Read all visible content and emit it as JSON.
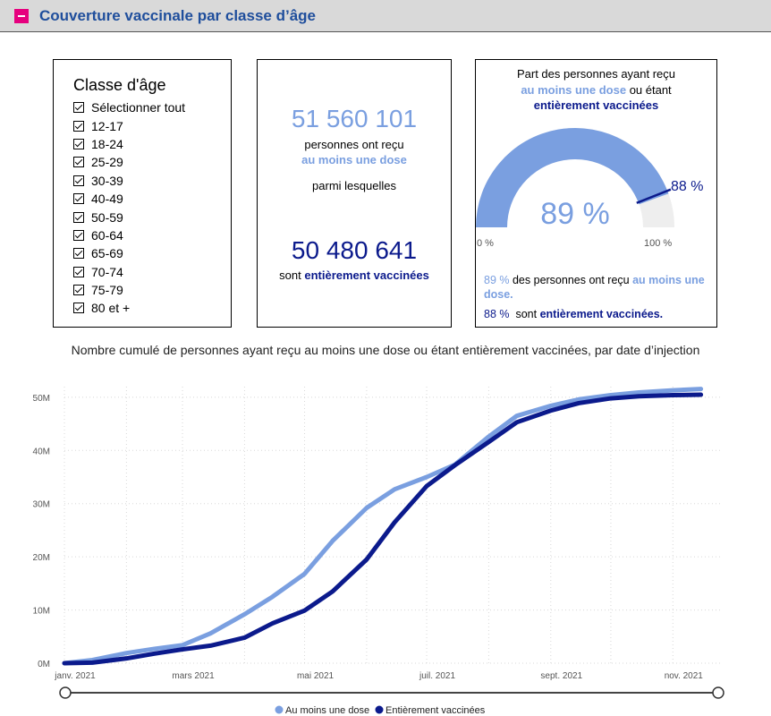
{
  "header": {
    "title": "Couverture vaccinale par classe d’âge"
  },
  "filter": {
    "title": "Classe d'âge",
    "items": [
      "Sélectionner tout",
      "12-17",
      "18-24",
      "25-29",
      "30-39",
      "40-49",
      "50-59",
      "60-64",
      "65-69",
      "70-74",
      "75-79",
      "80 et +"
    ]
  },
  "stats": {
    "one_dose_count": "51 560 101",
    "one_dose_text": "personnes ont reçu",
    "one_dose_highlight": "au moins une dose",
    "among": "parmi lesquelles",
    "full_count": "50 480 641",
    "full_text": "sont",
    "full_highlight": "entièrement vaccinées"
  },
  "gauge": {
    "caption_line1": "Part des personnes ayant reçu",
    "caption_highlight1": "au moins une dose",
    "caption_mid": "ou étant",
    "caption_highlight2": "entièrement vaccinées",
    "value_label": "89 %",
    "target_label": "88 %",
    "min_label": "0 %",
    "max_label": "100 %",
    "value": 89,
    "target": 88,
    "foot1_pct": "89 %",
    "foot1_text": "des personnes ont reçu",
    "foot1_highlight": "au moins une dose.",
    "foot2_pct": "88 %",
    "foot2_text": "sont",
    "foot2_highlight": "entièrement vaccinées."
  },
  "colors": {
    "light": "#7a9fe0",
    "dark": "#0b1a8c",
    "accent": "#e6007e",
    "header_title": "#1f4e9c"
  },
  "chart_data": {
    "type": "line",
    "title": "Nombre cumulé de personnes ayant reçu au moins une dose ou étant entièrement vaccinées, par date d’injection",
    "x": [
      "2021-01-01",
      "2021-01-15",
      "2021-02-01",
      "2021-02-15",
      "2021-03-01",
      "2021-03-15",
      "2021-04-01",
      "2021-04-15",
      "2021-05-01",
      "2021-05-15",
      "2021-06-01",
      "2021-06-15",
      "2021-07-01",
      "2021-07-15",
      "2021-08-01",
      "2021-08-15",
      "2021-09-01",
      "2021-09-15",
      "2021-10-01",
      "2021-10-15",
      "2021-11-01",
      "2021-11-15"
    ],
    "series": [
      {
        "name": "Au moins une dose",
        "color": "#7a9fe0",
        "values": [
          0,
          0.6,
          1.9,
          2.7,
          3.4,
          5.6,
          9.2,
          12.5,
          16.8,
          23,
          29.2,
          32.7,
          35,
          37.3,
          42.6,
          46.5,
          48.4,
          49.6,
          50.4,
          50.9,
          51.3,
          51.56
        ]
      },
      {
        "name": "Entièrement vaccinées",
        "color": "#0b1a8c",
        "values": [
          0,
          0.1,
          0.9,
          1.8,
          2.6,
          3.3,
          4.8,
          7.5,
          9.9,
          13.5,
          19.5,
          26.5,
          33.3,
          37.2,
          41.6,
          45.3,
          47.5,
          48.9,
          49.8,
          50.2,
          50.4,
          50.48
        ]
      }
    ],
    "x_ticks": [
      "janv. 2021",
      "mars 2021",
      "mai 2021",
      "juil. 2021",
      "sept. 2021",
      "nov. 2021"
    ],
    "y_ticks": [
      "0M",
      "10M",
      "20M",
      "30M",
      "40M",
      "50M"
    ],
    "ylim": [
      0,
      52
    ],
    "grid": true,
    "legend_position": "bottom"
  }
}
